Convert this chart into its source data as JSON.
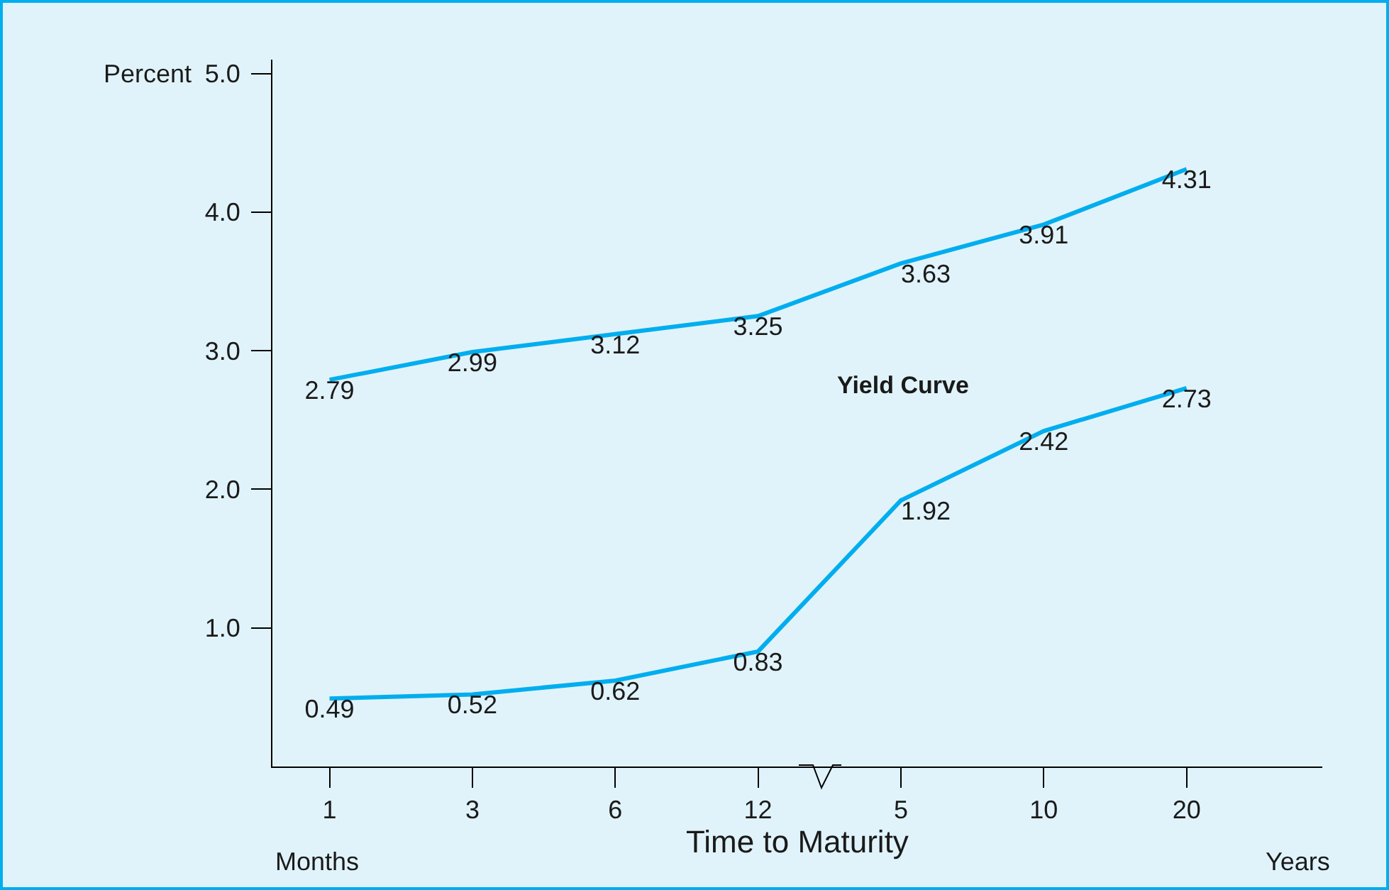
{
  "chart_data": {
    "type": "line",
    "xlabel": "Time to Maturity",
    "ylabel": "Percent",
    "categories": [
      "1",
      "3",
      "6",
      "12",
      "5",
      "10",
      "20"
    ],
    "series": [
      {
        "color": "#00aeef",
        "values": [
          2.79,
          2.99,
          3.12,
          3.25,
          3.63,
          3.91,
          4.31
        ]
      },
      {
        "color": "#00aeef",
        "values": [
          0.49,
          0.52,
          0.62,
          0.83,
          1.92,
          2.42,
          2.73
        ]
      }
    ],
    "ylim": [
      0,
      5.1
    ],
    "yticks": [
      {
        "value": 1,
        "label": "1.0"
      },
      {
        "value": 2,
        "label": "2.0"
      },
      {
        "value": 3,
        "label": "3.0"
      },
      {
        "value": 4,
        "label": "4.0"
      },
      {
        "value": 5,
        "label": "5.0"
      }
    ],
    "annotations": [
      "Yield Curve",
      "Months",
      "Years"
    ],
    "data_labels": true,
    "grid": false,
    "marker": "none",
    "line_style": "solid"
  }
}
